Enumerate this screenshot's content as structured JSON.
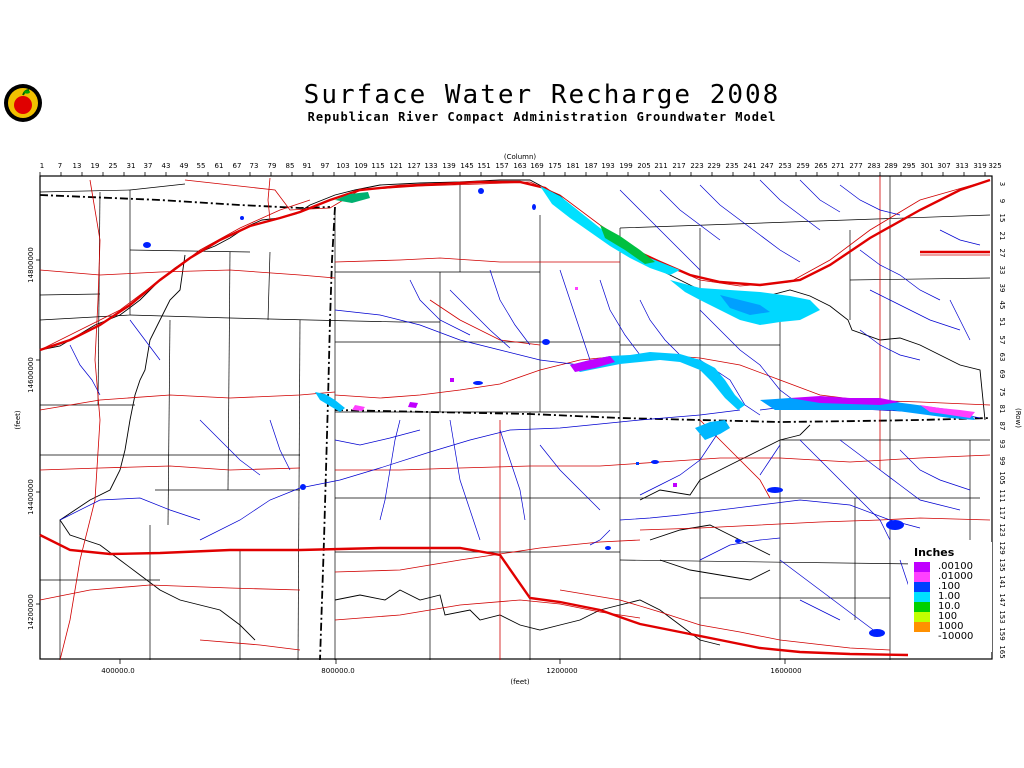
{
  "title": "Surface Water Recharge 2008",
  "subtitle": "Republican River Compact Administration Groundwater Model",
  "top_axis": {
    "label": "(Column)",
    "ticks": [
      "1",
      "7",
      "13",
      "19",
      "25",
      "31",
      "37",
      "43",
      "49",
      "55",
      "61",
      "67",
      "73",
      "79",
      "85",
      "91",
      "97",
      "103",
      "109",
      "115",
      "121",
      "127",
      "133",
      "139",
      "145",
      "151",
      "157",
      "163",
      "169",
      "175",
      "181",
      "187",
      "193",
      "199",
      "205",
      "211",
      "217",
      "223",
      "229",
      "235",
      "241",
      "247",
      "253",
      "259",
      "265",
      "271",
      "277",
      "283",
      "289",
      "295",
      "301",
      "307",
      "313",
      "319",
      "325"
    ]
  },
  "right_axis": {
    "label": "(Row)",
    "ticks": [
      "3",
      "9",
      "15",
      "21",
      "27",
      "33",
      "39",
      "45",
      "51",
      "57",
      "63",
      "69",
      "75",
      "81",
      "87",
      "93",
      "99",
      "105",
      "111",
      "117",
      "123",
      "129",
      "135",
      "141",
      "147",
      "153",
      "159",
      "165"
    ]
  },
  "bottom_axis": {
    "label": "(feet)",
    "ticks": [
      "400000.0",
      "800000.0",
      "1200000",
      "1600000"
    ]
  },
  "left_axis": {
    "label": "(feet)",
    "ticks": [
      "14800000",
      "14600000",
      "14400000",
      "14200000"
    ]
  },
  "legend": {
    "title": "Inches",
    "items": [
      {
        "label": ".00100",
        "color": "#c000ff"
      },
      {
        "label": ".01000",
        "color": "#ff40ff"
      },
      {
        "label": ".100",
        "color": "#0040ff"
      },
      {
        "label": "1.00",
        "color": "#00e0ff"
      },
      {
        "label": "10.0",
        "color": "#00d000"
      },
      {
        "label": "100",
        "color": "#c0ff00"
      },
      {
        "label": "1000",
        "color": "#ff9000"
      },
      {
        "label": "-10000",
        "color": "#ffffff"
      }
    ]
  }
}
